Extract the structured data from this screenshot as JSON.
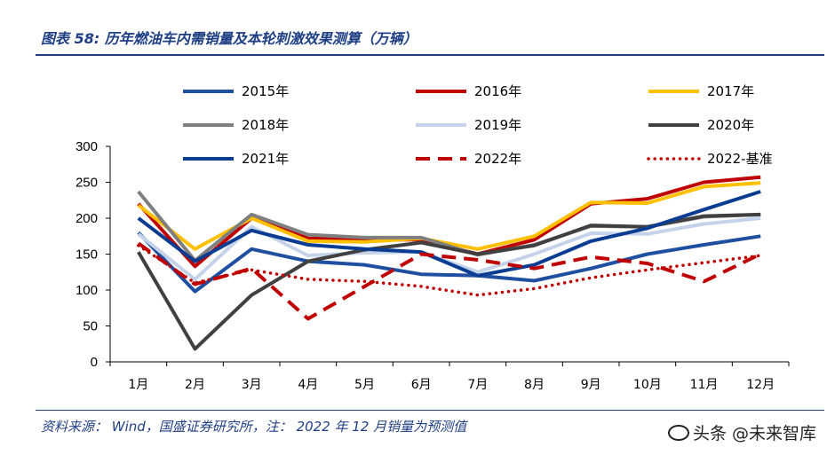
{
  "header": {
    "title": "图表 58:  历年燃油车内需销量及本轮刺激效果测算（万辆）"
  },
  "footer": {
    "source": "资料来源： Wind，国盛证券研究所，注： 2022 年 12 月销量为预测值",
    "watermark_text": "头条 @未来智库"
  },
  "chart_data": {
    "type": "line",
    "categories": [
      "1月",
      "2月",
      "3月",
      "4月",
      "5月",
      "6月",
      "7月",
      "8月",
      "9月",
      "10月",
      "11月",
      "12月"
    ],
    "ylim": [
      0,
      300
    ],
    "yticks": [
      "0",
      "50",
      "100",
      "150",
      "200",
      "250",
      "300"
    ],
    "legend_position": "top",
    "series": [
      {
        "name": "2015年",
        "color": "#1f4fa0",
        "style": "solid",
        "values": [
          180,
          98,
          157,
          140,
          135,
          122,
          120,
          113,
          130,
          150,
          163,
          175
        ]
      },
      {
        "name": "2016年",
        "color": "#c00000",
        "style": "solid",
        "values": [
          220,
          133,
          200,
          172,
          170,
          170,
          150,
          170,
          220,
          227,
          250,
          257
        ]
      },
      {
        "name": "2017年",
        "color": "#ffc000",
        "style": "solid",
        "values": [
          218,
          157,
          200,
          168,
          167,
          172,
          157,
          175,
          222,
          221,
          244,
          249
        ]
      },
      {
        "name": "2018年",
        "color": "#7f7f7f",
        "style": "solid",
        "values": [
          237,
          141,
          205,
          177,
          173,
          173,
          149,
          163,
          189,
          188,
          202,
          205
        ]
      },
      {
        "name": "2019年",
        "color": "#c5d3ea",
        "style": "solid",
        "values": [
          178,
          115,
          188,
          148,
          152,
          153,
          125,
          150,
          179,
          178,
          192,
          200
        ]
      },
      {
        "name": "2020年",
        "color": "#404040",
        "style": "solid",
        "values": [
          153,
          18,
          93,
          140,
          156,
          166,
          150,
          162,
          190,
          188,
          203,
          205
        ]
      },
      {
        "name": "2021年",
        "color": "#0a3d91",
        "style": "solid",
        "values": [
          200,
          140,
          183,
          163,
          157,
          153,
          120,
          135,
          168,
          186,
          212,
          237
        ]
      },
      {
        "name": "2022年",
        "color": "#c00000",
        "style": "dashed",
        "values": [
          165,
          108,
          130,
          60,
          105,
          150,
          142,
          130,
          146,
          137,
          112,
          150
        ]
      },
      {
        "name": "2022-基准",
        "color": "#c00000",
        "style": "dotted",
        "values": [
          162,
          110,
          128,
          115,
          112,
          105,
          93,
          102,
          117,
          128,
          138,
          148
        ]
      }
    ]
  }
}
